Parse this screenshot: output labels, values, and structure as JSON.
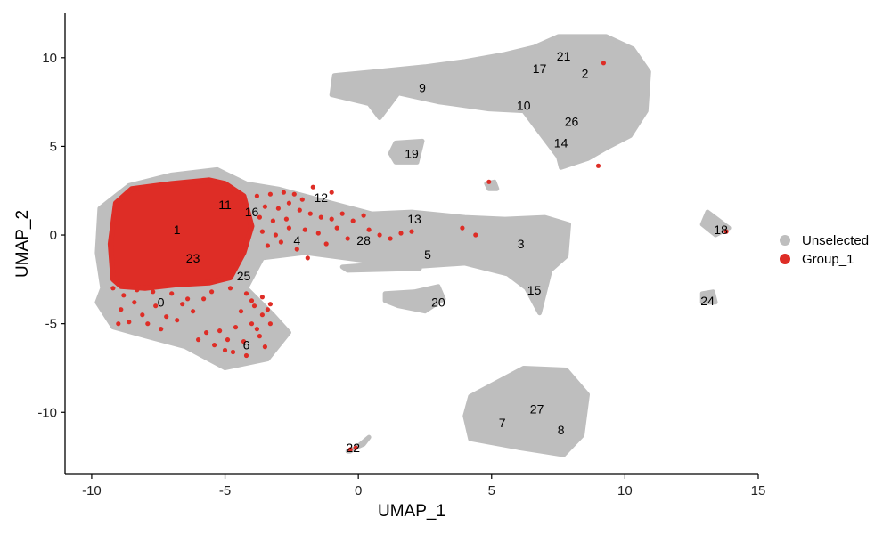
{
  "chart_data": {
    "type": "scatter",
    "xlabel": "UMAP_1",
    "ylabel": "UMAP_2",
    "xlim": [
      -11,
      15
    ],
    "ylim": [
      -13.5,
      12.5
    ],
    "xticks": [
      -10,
      -5,
      0,
      5,
      10,
      15
    ],
    "yticks": [
      -10,
      -5,
      0,
      5,
      10
    ],
    "grid": false,
    "legend_position": "right",
    "series": [
      {
        "name": "Unselected",
        "color": "#bebebe"
      },
      {
        "name": "Group_1",
        "color": "#de2d26"
      }
    ],
    "regions": [
      {
        "series": "Unselected",
        "points": [
          [
            -9.6,
            -3.0
          ],
          [
            -9.8,
            -1.0
          ],
          [
            -9.7,
            1.5
          ],
          [
            -8.6,
            2.8
          ],
          [
            -7.0,
            3.4
          ],
          [
            -5.3,
            3.7
          ],
          [
            -4.2,
            2.9
          ],
          [
            -3.0,
            2.6
          ],
          [
            -1.5,
            2.0
          ],
          [
            0.5,
            1.2
          ],
          [
            2.0,
            1.3
          ],
          [
            4.0,
            1.0
          ],
          [
            5.5,
            0.9
          ],
          [
            7.0,
            1.0
          ],
          [
            7.9,
            0.6
          ],
          [
            7.8,
            -1.2
          ],
          [
            7.2,
            -2.0
          ],
          [
            6.8,
            -4.4
          ],
          [
            6.3,
            -3.0
          ],
          [
            5.6,
            -2.2
          ],
          [
            4.0,
            -1.6
          ],
          [
            2.0,
            -1.8
          ],
          [
            0.0,
            -1.4
          ],
          [
            -2.0,
            -1.0
          ],
          [
            -3.6,
            -1.3
          ],
          [
            -4.2,
            -3.0
          ],
          [
            -3.2,
            -4.5
          ],
          [
            -2.6,
            -5.5
          ],
          [
            -3.4,
            -7.0
          ],
          [
            -5.0,
            -7.5
          ],
          [
            -6.5,
            -6.3
          ],
          [
            -8.0,
            -5.7
          ],
          [
            -9.2,
            -5.2
          ],
          [
            -9.8,
            -3.8
          ]
        ]
      },
      {
        "series": "Unselected",
        "points": [
          [
            -1.0,
            7.9
          ],
          [
            -0.9,
            9.0
          ],
          [
            0.5,
            9.2
          ],
          [
            2.5,
            9.5
          ],
          [
            4.0,
            9.8
          ],
          [
            5.5,
            10.2
          ],
          [
            6.6,
            10.6
          ],
          [
            7.5,
            11.2
          ],
          [
            9.3,
            11.2
          ],
          [
            10.3,
            10.5
          ],
          [
            10.9,
            9.2
          ],
          [
            10.8,
            7.0
          ],
          [
            10.2,
            5.6
          ],
          [
            9.3,
            4.9
          ],
          [
            8.6,
            4.3
          ],
          [
            7.6,
            3.8
          ],
          [
            7.5,
            4.4
          ],
          [
            6.9,
            5.6
          ],
          [
            6.2,
            7.0
          ],
          [
            4.9,
            7.1
          ],
          [
            3.0,
            7.5
          ],
          [
            1.5,
            8.0
          ],
          [
            1.1,
            7.2
          ],
          [
            0.8,
            6.6
          ],
          [
            0.4,
            7.4
          ]
        ]
      },
      {
        "series": "Unselected",
        "points": [
          [
            4.2,
            -9.1
          ],
          [
            6.2,
            -7.5
          ],
          [
            7.8,
            -7.6
          ],
          [
            8.6,
            -9.0
          ],
          [
            8.4,
            -11.3
          ],
          [
            7.7,
            -12.4
          ],
          [
            6.0,
            -12.0
          ],
          [
            4.2,
            -11.5
          ],
          [
            4.0,
            -10.2
          ]
        ]
      },
      {
        "series": "Unselected",
        "points": [
          [
            1.0,
            -3.3
          ],
          [
            2.1,
            -3.2
          ],
          [
            3.0,
            -2.9
          ],
          [
            3.2,
            -3.6
          ],
          [
            2.5,
            -4.3
          ],
          [
            1.5,
            -4.0
          ],
          [
            1.0,
            -3.7
          ]
        ]
      },
      {
        "series": "Unselected",
        "points": [
          [
            -0.6,
            -1.8
          ],
          [
            2.2,
            -1.5
          ],
          [
            2.3,
            -1.9
          ],
          [
            -0.4,
            -2.0
          ]
        ]
      },
      {
        "series": "Unselected",
        "points": [
          [
            1.4,
            5.2
          ],
          [
            2.4,
            5.3
          ],
          [
            2.2,
            4.1
          ],
          [
            1.4,
            4.1
          ],
          [
            1.2,
            4.6
          ]
        ]
      },
      {
        "series": "Unselected",
        "points": [
          [
            13.1,
            1.3
          ],
          [
            13.9,
            0.4
          ],
          [
            13.4,
            0.0
          ],
          [
            12.9,
            0.6
          ]
        ]
      },
      {
        "series": "Unselected",
        "points": [
          [
            12.9,
            -3.3
          ],
          [
            13.3,
            -3.2
          ],
          [
            13.4,
            -3.8
          ],
          [
            12.9,
            -3.8
          ]
        ]
      },
      {
        "series": "Unselected",
        "points": [
          [
            -0.4,
            -12.2
          ],
          [
            0.2,
            -11.8
          ],
          [
            0.4,
            -11.4
          ],
          [
            0.0,
            -11.9
          ],
          [
            -0.3,
            -12.2
          ]
        ]
      },
      {
        "series": "Unselected",
        "points": [
          [
            4.8,
            2.9
          ],
          [
            5.1,
            3.0
          ],
          [
            5.2,
            2.6
          ],
          [
            4.9,
            2.6
          ]
        ]
      },
      {
        "series": "Group_1",
        "points": [
          [
            -9.2,
            -2.5
          ],
          [
            -9.3,
            -0.5
          ],
          [
            -9.1,
            1.8
          ],
          [
            -8.5,
            2.6
          ],
          [
            -7.0,
            2.9
          ],
          [
            -5.6,
            3.1
          ],
          [
            -5.0,
            2.9
          ],
          [
            -4.3,
            2.2
          ],
          [
            -4.0,
            0.5
          ],
          [
            -4.3,
            -1.0
          ],
          [
            -4.8,
            -2.4
          ],
          [
            -5.6,
            -2.7
          ],
          [
            -6.8,
            -2.8
          ],
          [
            -8.0,
            -3.0
          ],
          [
            -8.9,
            -2.9
          ]
        ]
      }
    ],
    "point_groups": [
      {
        "series": "Group_1",
        "points": [
          [
            -3.8,
            2.2
          ],
          [
            -3.3,
            2.3
          ],
          [
            -2.8,
            2.4
          ],
          [
            -2.4,
            2.3
          ],
          [
            -2.1,
            2.0
          ],
          [
            -3.5,
            1.6
          ],
          [
            -3.0,
            1.5
          ],
          [
            -2.6,
            1.8
          ],
          [
            -2.2,
            1.4
          ],
          [
            -3.7,
            1.0
          ],
          [
            -3.2,
            0.8
          ],
          [
            -2.7,
            0.9
          ],
          [
            -1.8,
            1.2
          ],
          [
            -1.4,
            1.0
          ],
          [
            -1.0,
            0.9
          ],
          [
            -0.6,
            1.2
          ],
          [
            -0.2,
            0.8
          ],
          [
            0.2,
            1.1
          ],
          [
            -3.6,
            0.2
          ],
          [
            -3.1,
            0.0
          ],
          [
            -2.6,
            0.4
          ],
          [
            -2.0,
            0.3
          ],
          [
            -1.5,
            0.1
          ],
          [
            -0.8,
            0.4
          ],
          [
            0.4,
            0.3
          ],
          [
            0.8,
            0.0
          ],
          [
            1.2,
            -0.2
          ],
          [
            1.6,
            0.1
          ],
          [
            -3.4,
            -0.6
          ],
          [
            -2.9,
            -0.4
          ],
          [
            -2.3,
            -0.8
          ],
          [
            -1.9,
            -1.3
          ],
          [
            -1.2,
            -0.5
          ],
          [
            -0.4,
            -0.2
          ],
          [
            2.0,
            0.2
          ],
          [
            3.9,
            0.4
          ],
          [
            4.4,
            0.0
          ],
          [
            -1.7,
            2.7
          ],
          [
            -1.0,
            2.4
          ],
          [
            4.9,
            3.0
          ]
        ]
      },
      {
        "series": "Group_1",
        "points": [
          [
            -4.8,
            -3.0
          ],
          [
            -4.2,
            -3.3
          ],
          [
            -3.6,
            -3.5
          ],
          [
            -3.3,
            -3.9
          ],
          [
            -3.9,
            -4.0
          ],
          [
            -4.4,
            -4.3
          ],
          [
            -3.6,
            -4.5
          ],
          [
            -3.3,
            -5.0
          ],
          [
            -4.0,
            -5.0
          ],
          [
            -4.6,
            -5.2
          ],
          [
            -5.2,
            -5.4
          ],
          [
            -5.7,
            -5.5
          ],
          [
            -4.9,
            -5.9
          ],
          [
            -4.3,
            -6.0
          ],
          [
            -3.7,
            -5.7
          ],
          [
            -5.4,
            -6.2
          ],
          [
            -4.7,
            -6.6
          ],
          [
            -4.2,
            -6.8
          ],
          [
            -5.0,
            -6.5
          ],
          [
            -3.5,
            -6.3
          ],
          [
            -3.4,
            -4.2
          ],
          [
            -4.0,
            -3.7
          ],
          [
            -3.8,
            -5.3
          ],
          [
            -6.0,
            -5.9
          ]
        ]
      },
      {
        "series": "Group_1",
        "points": [
          [
            -9.2,
            -3.0
          ],
          [
            -8.8,
            -3.4
          ],
          [
            -8.4,
            -3.8
          ],
          [
            -8.9,
            -4.2
          ],
          [
            -8.1,
            -4.5
          ],
          [
            -7.6,
            -4.0
          ],
          [
            -7.2,
            -4.6
          ],
          [
            -8.6,
            -4.9
          ],
          [
            -7.9,
            -5.0
          ],
          [
            -6.8,
            -4.8
          ],
          [
            -6.4,
            -3.6
          ],
          [
            -7.0,
            -3.3
          ],
          [
            -7.7,
            -3.2
          ],
          [
            -8.3,
            -3.1
          ],
          [
            -6.2,
            -4.3
          ],
          [
            -5.8,
            -3.6
          ],
          [
            -9.0,
            -5.0
          ],
          [
            -7.4,
            -5.3
          ],
          [
            -5.5,
            -3.2
          ],
          [
            -6.6,
            -3.9
          ]
        ]
      },
      {
        "series": "Group_1",
        "points": [
          [
            9.2,
            9.7
          ],
          [
            9.0,
            3.9
          ],
          [
            13.8,
            0.2
          ],
          [
            -0.1,
            -12.0
          ],
          [
            -0.3,
            -12.1
          ]
        ]
      }
    ],
    "cluster_labels": [
      {
        "text": "0",
        "x": -7.4,
        "y": -3.8
      },
      {
        "text": "1",
        "x": -6.8,
        "y": 0.3
      },
      {
        "text": "2",
        "x": 8.5,
        "y": 9.1
      },
      {
        "text": "3",
        "x": 6.1,
        "y": -0.5
      },
      {
        "text": "4",
        "x": -2.3,
        "y": -0.3
      },
      {
        "text": "5",
        "x": 2.6,
        "y": -1.1
      },
      {
        "text": "6",
        "x": -4.2,
        "y": -6.2
      },
      {
        "text": "7",
        "x": 5.4,
        "y": -10.6
      },
      {
        "text": "8",
        "x": 7.6,
        "y": -11.0
      },
      {
        "text": "9",
        "x": 2.4,
        "y": 8.3
      },
      {
        "text": "10",
        "x": 6.2,
        "y": 7.3
      },
      {
        "text": "11",
        "x": -5.0,
        "y": 1.7
      },
      {
        "text": "13",
        "x": 2.1,
        "y": 0.9
      },
      {
        "text": "12",
        "x": -1.4,
        "y": 2.1
      },
      {
        "text": "14",
        "x": 7.6,
        "y": 5.2
      },
      {
        "text": "15",
        "x": 6.6,
        "y": -3.1
      },
      {
        "text": "16",
        "x": -4.0,
        "y": 1.3
      },
      {
        "text": "17",
        "x": 6.8,
        "y": 9.4
      },
      {
        "text": "18",
        "x": 13.6,
        "y": 0.3
      },
      {
        "text": "19",
        "x": 2.0,
        "y": 4.6
      },
      {
        "text": "20",
        "x": 3.0,
        "y": -3.8
      },
      {
        "text": "21",
        "x": 7.7,
        "y": 10.1
      },
      {
        "text": "22",
        "x": -0.2,
        "y": -12.0
      },
      {
        "text": "23",
        "x": -6.2,
        "y": -1.3
      },
      {
        "text": "24",
        "x": 13.1,
        "y": -3.7
      },
      {
        "text": "25",
        "x": -4.3,
        "y": -2.3
      },
      {
        "text": "26",
        "x": 8.0,
        "y": 6.4
      },
      {
        "text": "27",
        "x": 6.7,
        "y": -9.8
      },
      {
        "text": "28",
        "x": 0.2,
        "y": -0.3
      }
    ]
  }
}
